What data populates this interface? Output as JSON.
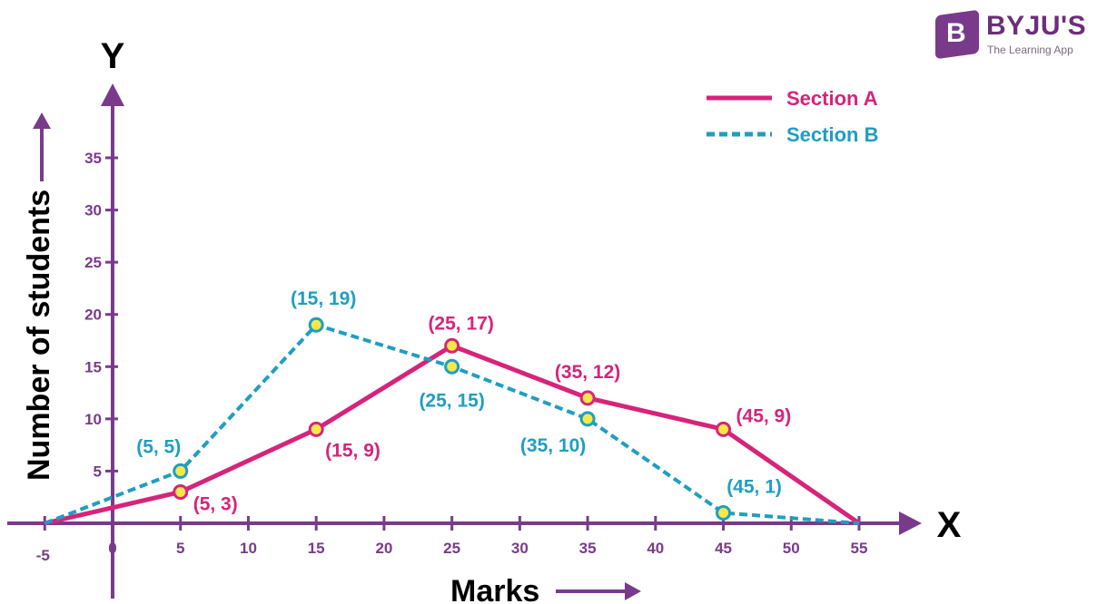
{
  "chart_data": {
    "type": "line",
    "xlabel": "Marks",
    "ylabel": "Number of students",
    "x_axis_letter": "X",
    "y_axis_letter": "Y",
    "xlim": [
      -5,
      55
    ],
    "ylim": [
      0,
      35
    ],
    "x_ticks": [
      -5,
      0,
      5,
      10,
      15,
      20,
      25,
      30,
      35,
      40,
      45,
      50,
      55
    ],
    "y_ticks": [
      5,
      10,
      15,
      20,
      25,
      30,
      35
    ],
    "grid": false,
    "legend_position": "top-right",
    "series": [
      {
        "name": "Section A",
        "color": "#d6247a",
        "style": "solid",
        "x": [
          -5,
          5,
          15,
          25,
          35,
          45,
          55
        ],
        "y": [
          0,
          3,
          9,
          17,
          12,
          9,
          0
        ],
        "point_labels": [
          "",
          "(5, 3)",
          "(15, 9)",
          "(25, 17)",
          "(35, 12)",
          "(45, 9)",
          ""
        ]
      },
      {
        "name": "Section B",
        "color": "#1f9ec2",
        "style": "dashed",
        "x": [
          -5,
          5,
          15,
          25,
          35,
          45,
          55
        ],
        "y": [
          0,
          5,
          19,
          15,
          10,
          1,
          0
        ],
        "point_labels": [
          "",
          "(5, 5)",
          "(15, 19)",
          "(25, 15)",
          "(35, 10)",
          "(45, 1)",
          ""
        ]
      }
    ],
    "colors": {
      "axis": "#7a3a8c",
      "marker_fill": "#f7e84a"
    }
  },
  "logo": {
    "name": "BYJU'S",
    "tagline": "The Learning App",
    "badge": "B"
  }
}
